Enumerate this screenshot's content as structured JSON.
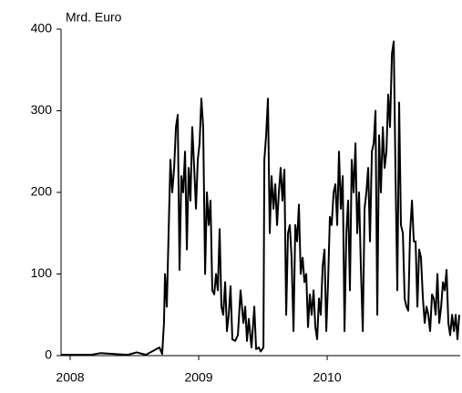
{
  "chart_data": {
    "type": "line",
    "y_label": "Mrd. Euro",
    "x": [
      2007.929,
      2008.163,
      2008.234,
      2008.447,
      2008.518,
      2008.589,
      2008.695,
      2008.716,
      2008.73,
      2008.738,
      2008.752,
      2008.766,
      2008.78,
      2008.794,
      2008.809,
      2008.823,
      2008.837,
      2008.851,
      2008.865,
      2008.879,
      2008.894,
      2008.908,
      2008.922,
      2008.936,
      2008.95,
      2008.965,
      2008.979,
      2008.993,
      2009.007,
      2009.021,
      2009.035,
      2009.05,
      2009.064,
      2009.078,
      2009.092,
      2009.106,
      2009.121,
      2009.135,
      2009.149,
      2009.163,
      2009.177,
      2009.191,
      2009.206,
      2009.22,
      2009.234,
      2009.248,
      2009.262,
      2009.284,
      2009.305,
      2009.326,
      2009.348,
      2009.362,
      2009.376,
      2009.39,
      2009.411,
      2009.433,
      2009.447,
      2009.468,
      2009.482,
      2009.504,
      2009.511,
      2009.525,
      2009.539,
      2009.553,
      2009.567,
      2009.582,
      2009.596,
      2009.61,
      2009.624,
      2009.638,
      2009.652,
      2009.667,
      2009.681,
      2009.695,
      2009.709,
      2009.723,
      2009.738,
      2009.752,
      2009.766,
      2009.78,
      2009.794,
      2009.809,
      2009.823,
      2009.837,
      2009.851,
      2009.865,
      2009.879,
      2009.894,
      2009.908,
      2009.922,
      2009.936,
      2009.95,
      2009.965,
      2009.979,
      2009.993,
      2010.007,
      2010.021,
      2010.035,
      2010.05,
      2010.064,
      2010.078,
      2010.092,
      2010.106,
      2010.121,
      2010.135,
      2010.149,
      2010.163,
      2010.177,
      2010.191,
      2010.206,
      2010.22,
      2010.234,
      2010.248,
      2010.262,
      2010.277,
      2010.291,
      2010.305,
      2010.319,
      2010.333,
      2010.348,
      2010.362,
      2010.376,
      2010.39,
      2010.404,
      2010.418,
      2010.433,
      2010.447,
      2010.461,
      2010.475,
      2010.489,
      2010.504,
      2010.518,
      2010.532,
      2010.546,
      2010.56,
      2010.574,
      2010.589,
      2010.603,
      2010.617,
      2010.631,
      2010.645,
      2010.66,
      2010.674,
      2010.688,
      2010.702,
      2010.716,
      2010.73,
      2010.745,
      2010.759,
      2010.773,
      2010.787,
      2010.801,
      2010.816,
      2010.83,
      2010.844,
      2010.858,
      2010.872,
      2010.887,
      2010.901,
      2010.915,
      2010.929,
      2010.943,
      2010.957,
      2010.972,
      2010.986,
      2011.0,
      2011.014,
      2011.028
    ],
    "series": [
      {
        "color": "#000000",
        "values": [
          1,
          1,
          3,
          1,
          4,
          1,
          10,
          2,
          40,
          100,
          60,
          150,
          240,
          200,
          230,
          280,
          295,
          105,
          220,
          200,
          250,
          130,
          230,
          190,
          280,
          230,
          180,
          240,
          260,
          315,
          280,
          100,
          200,
          160,
          190,
          80,
          75,
          100,
          80,
          155,
          60,
          50,
          90,
          30,
          50,
          85,
          20,
          18,
          25,
          80,
          40,
          60,
          18,
          45,
          10,
          60,
          8,
          10,
          5,
          10,
          240,
          270,
          315,
          150,
          220,
          180,
          210,
          160,
          200,
          230,
          190,
          228,
          50,
          150,
          160,
          120,
          30,
          160,
          140,
          185,
          100,
          120,
          90,
          100,
          35,
          75,
          50,
          80,
          35,
          20,
          70,
          50,
          110,
          130,
          30,
          90,
          170,
          160,
          200,
          210,
          160,
          250,
          180,
          220,
          30,
          150,
          190,
          80,
          240,
          200,
          260,
          150,
          200,
          110,
          30,
          180,
          200,
          230,
          140,
          250,
          260,
          300,
          50,
          270,
          200,
          280,
          230,
          250,
          320,
          280,
          370,
          385,
          220,
          80,
          310,
          160,
          150,
          70,
          60,
          55,
          150,
          190,
          140,
          140,
          60,
          130,
          120,
          70,
          40,
          60,
          50,
          30,
          75,
          70,
          50,
          100,
          40,
          60,
          90,
          80,
          105,
          40,
          25,
          50,
          30,
          50,
          20,
          50
        ]
      }
    ],
    "xlim": [
      2007.929,
      2011.035
    ],
    "xticks": [
      2008,
      2009,
      2010
    ],
    "ylim": [
      0,
      400
    ],
    "yticks": [
      0,
      100,
      200,
      300,
      400
    ]
  }
}
